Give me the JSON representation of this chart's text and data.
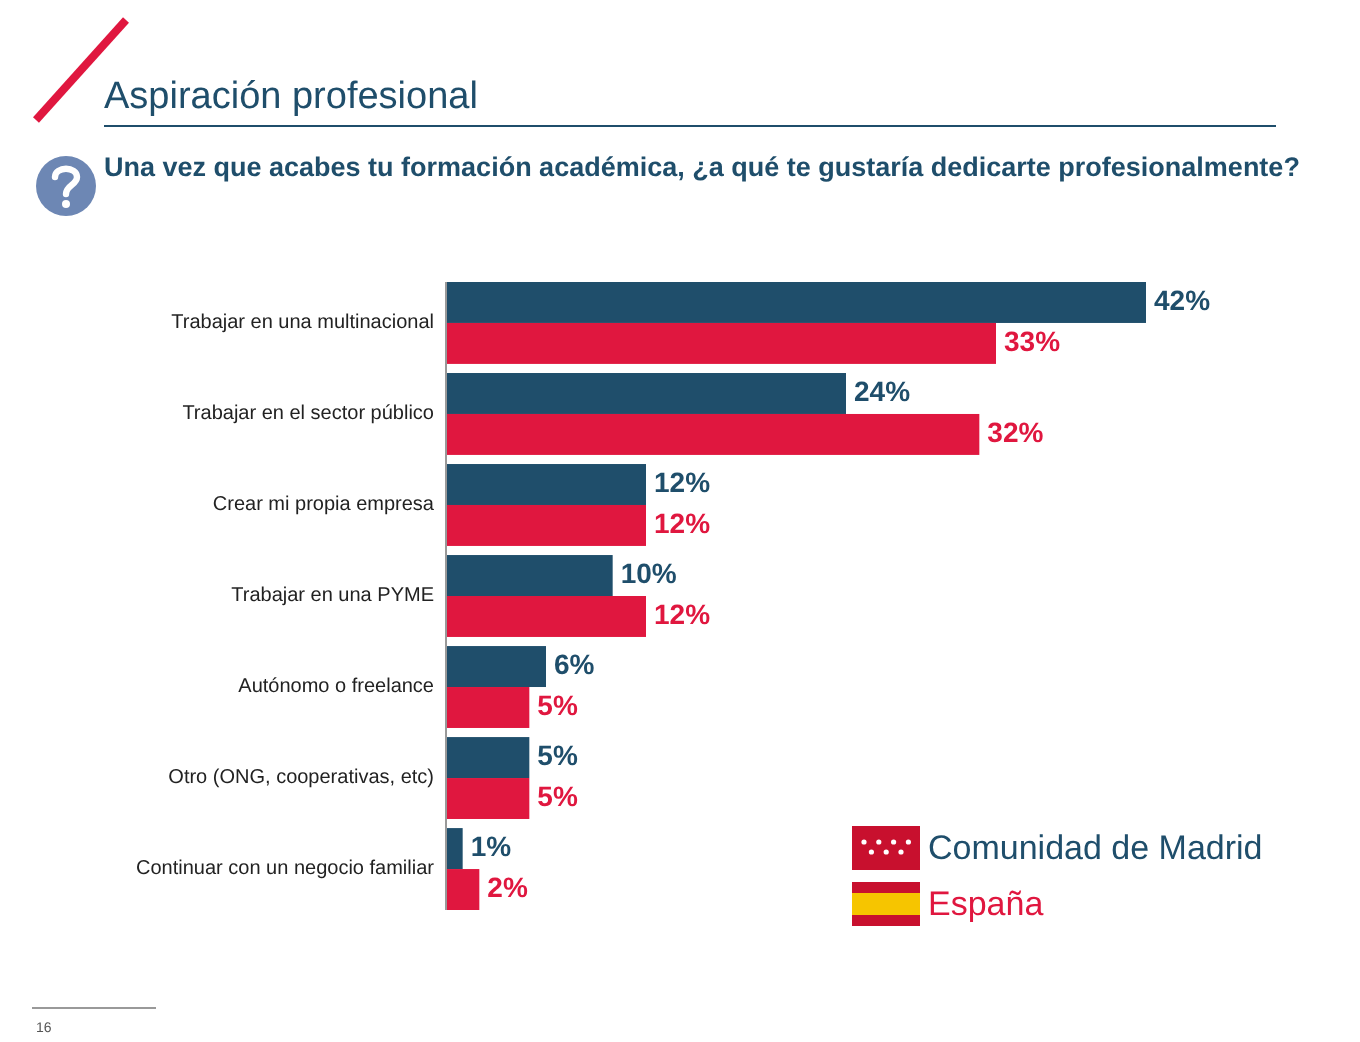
{
  "chart_data": {
    "type": "bar",
    "orientation": "horizontal",
    "title": "Aspiración profesional",
    "subtitle": "Una vez que acabes tu formación académica, ¿a qué te gustaría dedicarte profesionalmente?",
    "categories": [
      "Trabajar en una multinacional",
      "Trabajar en el sector público",
      "Crear mi propia empresa",
      "Trabajar en una PYME",
      "Autónomo o freelance",
      "Otro (ONG, cooperativas, etc)",
      "Continuar con un negocio familiar"
    ],
    "series": [
      {
        "name": "Comunidad de Madrid",
        "color": "#1f4e6b",
        "values": [
          42,
          24,
          12,
          10,
          6,
          5,
          1
        ],
        "value_labels": [
          "42%",
          "24%",
          "12%",
          "10%",
          "6%",
          "5%",
          "1%"
        ]
      },
      {
        "name": "España",
        "color": "#e0173f",
        "values": [
          33,
          32,
          12,
          12,
          5,
          5,
          2
        ],
        "value_labels": [
          "33%",
          "32%",
          "12%",
          "12%",
          "5%",
          "5%",
          "2%"
        ]
      }
    ],
    "legend": "bottom right",
    "annotations": [
      "16"
    ]
  }
}
